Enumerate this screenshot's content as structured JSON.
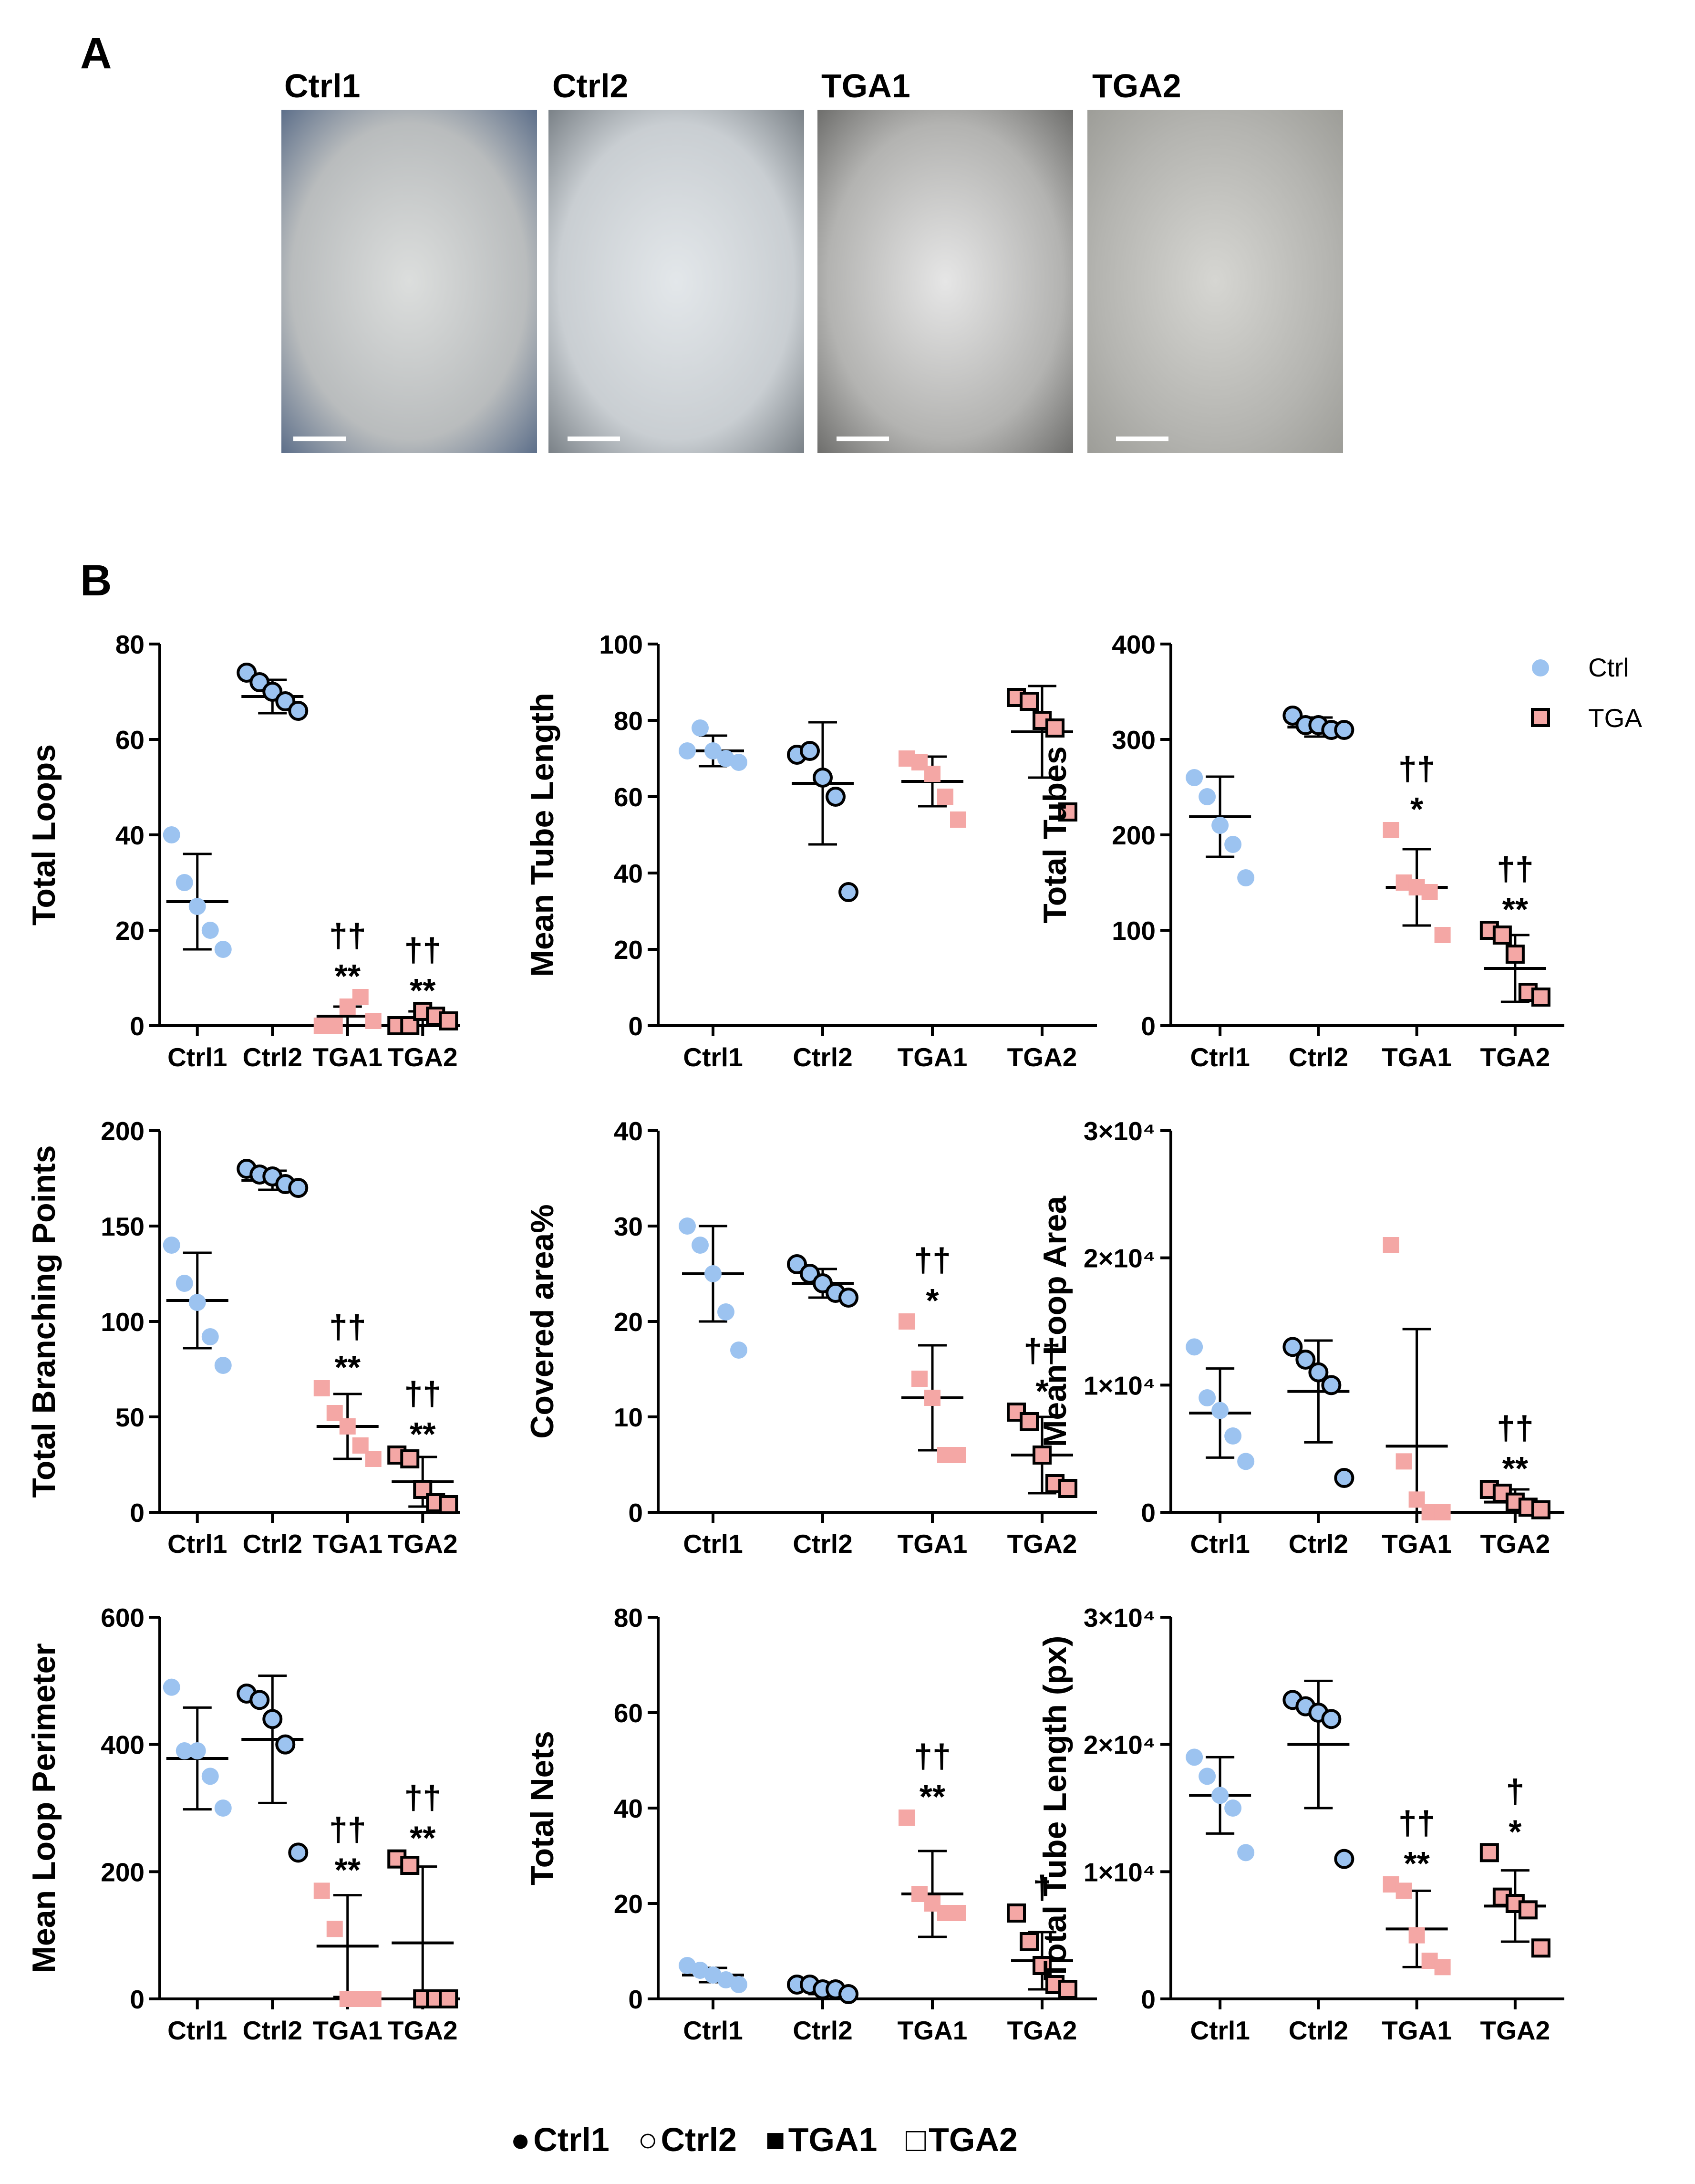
{
  "panel_a": {
    "letter": "A",
    "images": [
      {
        "label": "Ctrl1",
        "bg": "#b9bcbd",
        "center": "#dcdedd",
        "edge": "#5d6f8a"
      },
      {
        "label": "Ctrl2",
        "bg": "#c9ced2",
        "center": "#e3e7ea",
        "edge": "#7a8187"
      },
      {
        "label": "TGA1",
        "bg": "#b3b3b1",
        "center": "#e6e6e6",
        "edge": "#6e6e6c"
      },
      {
        "label": "TGA2",
        "bg": "#b4b4b0",
        "center": "#d6d6d2",
        "edge": "#9d9d98"
      }
    ]
  },
  "panel_b": {
    "letter": "B"
  },
  "legend": {
    "ctrl": {
      "label": "Ctrl",
      "color": "#9cc3f0"
    },
    "tga": {
      "label": "TGA",
      "color": "#f4a7a5"
    }
  },
  "bottom_legend": {
    "ctrl1": {
      "symbol": "●",
      "label": "Ctrl1"
    },
    "ctrl2": {
      "symbol": "○",
      "label": "Ctrl2"
    },
    "tga1": {
      "symbol": "■",
      "label": "TGA1"
    },
    "tga2": {
      "symbol": "□",
      "label": "TGA2"
    }
  },
  "chart_data": [
    {
      "type": "scatter",
      "title": "",
      "ylabel": "Total Loops",
      "ylim": [
        0,
        80
      ],
      "yticks": [
        "0",
        "20",
        "40",
        "60",
        "80"
      ],
      "categories": [
        "Ctrl1",
        "Ctrl2",
        "TGA1",
        "TGA2"
      ],
      "points": [
        [
          40,
          30,
          25,
          20,
          16
        ],
        [
          74,
          72,
          70,
          68,
          66
        ],
        [
          0,
          0,
          4,
          6,
          1
        ],
        [
          0,
          0,
          3,
          2,
          1
        ]
      ],
      "mean": [
        26,
        69,
        2,
        1.5
      ],
      "sd": [
        10,
        3.5,
        2,
        1.5
      ],
      "annotations": [
        null,
        null,
        [
          "††",
          "**"
        ],
        [
          "††",
          "**"
        ]
      ]
    },
    {
      "type": "scatter",
      "title": "",
      "ylabel": "Mean Tube Length",
      "ylim": [
        0,
        100
      ],
      "yticks": [
        "0",
        "20",
        "40",
        "60",
        "80",
        "100"
      ],
      "categories": [
        "Ctrl1",
        "Ctrl2",
        "TGA1",
        "TGA2"
      ],
      "points": [
        [
          72,
          78,
          72,
          70,
          69
        ],
        [
          71,
          72,
          65,
          60,
          35
        ],
        [
          70,
          69,
          66,
          60,
          54
        ],
        [
          86,
          85,
          80,
          78,
          56
        ]
      ],
      "mean": [
        72,
        63.5,
        64,
        77
      ],
      "sd": [
        4,
        16,
        6.5,
        12
      ],
      "annotations": [
        null,
        null,
        null,
        null
      ]
    },
    {
      "type": "scatter",
      "title": "",
      "ylabel": "Total Tubes",
      "ylim": [
        0,
        400
      ],
      "yticks": [
        "0",
        "100",
        "200",
        "300",
        "400"
      ],
      "categories": [
        "Ctrl1",
        "Ctrl2",
        "TGA1",
        "TGA2"
      ],
      "points": [
        [
          260,
          240,
          210,
          190,
          155
        ],
        [
          325,
          315,
          315,
          310,
          310
        ],
        [
          205,
          150,
          145,
          140,
          95
        ],
        [
          100,
          95,
          75,
          35,
          30
        ]
      ],
      "mean": [
        219,
        313,
        145,
        60
      ],
      "sd": [
        42,
        10,
        40,
        35
      ],
      "annotations": [
        null,
        null,
        [
          "††",
          "*"
        ],
        [
          "††",
          "**"
        ]
      ]
    },
    {
      "type": "scatter",
      "title": "",
      "ylabel": "Total Branching Points",
      "ylim": [
        0,
        200
      ],
      "yticks": [
        "0",
        "50",
        "100",
        "150",
        "200"
      ],
      "categories": [
        "Ctrl1",
        "Ctrl2",
        "TGA1",
        "TGA2"
      ],
      "points": [
        [
          140,
          120,
          110,
          92,
          77
        ],
        [
          180,
          177,
          176,
          172,
          170
        ],
        [
          65,
          52,
          45,
          35,
          28
        ],
        [
          30,
          28,
          12,
          5,
          4
        ]
      ],
      "mean": [
        111,
        174,
        45,
        16
      ],
      "sd": [
        25,
        5,
        17,
        13
      ],
      "annotations": [
        null,
        null,
        [
          "††",
          "**"
        ],
        [
          "††",
          "**"
        ]
      ]
    },
    {
      "type": "scatter",
      "title": "",
      "ylabel": "Covered area%",
      "ylim": [
        0,
        40
      ],
      "yticks": [
        "0",
        "10",
        "20",
        "30",
        "40"
      ],
      "categories": [
        "Ctrl1",
        "Ctrl2",
        "TGA1",
        "TGA2"
      ],
      "points": [
        [
          30,
          28,
          25,
          21,
          17
        ],
        [
          26,
          25,
          24,
          23,
          22.5
        ],
        [
          20,
          14,
          12,
          6,
          6
        ],
        [
          10.5,
          9.5,
          6,
          3,
          2.5
        ]
      ],
      "mean": [
        25,
        24,
        12,
        6
      ],
      "sd": [
        5,
        1.5,
        5.5,
        4
      ],
      "annotations": [
        null,
        null,
        [
          "††",
          "*"
        ],
        [
          "††",
          "*"
        ]
      ]
    },
    {
      "type": "scatter",
      "title": "",
      "ylabel": "Mean Loop Area",
      "ylim": [
        0,
        30000
      ],
      "yticks": [
        "0",
        "1×10⁴",
        "2×10⁴",
        "3×10⁴"
      ],
      "categories": [
        "Ctrl1",
        "Ctrl2",
        "TGA1",
        "TGA2"
      ],
      "points": [
        [
          13000,
          9000,
          8000,
          6000,
          4000
        ],
        [
          13000,
          12000,
          11000,
          10000,
          2700
        ],
        [
          21000,
          4000,
          1000,
          0,
          0
        ],
        [
          1800,
          1500,
          800,
          400,
          200
        ]
      ],
      "mean": [
        7800,
        9500,
        5200,
        800
      ],
      "sd": [
        3500,
        4000,
        9200,
        1000
      ],
      "annotations": [
        null,
        null,
        null,
        [
          "††",
          "**"
        ]
      ]
    },
    {
      "type": "scatter",
      "title": "",
      "ylabel": "Mean Loop Perimeter",
      "ylim": [
        0,
        600
      ],
      "yticks": [
        "0",
        "200",
        "400",
        "600"
      ],
      "categories": [
        "Ctrl1",
        "Ctrl2",
        "TGA1",
        "TGA2"
      ],
      "points": [
        [
          490,
          390,
          390,
          350,
          300
        ],
        [
          480,
          470,
          440,
          400,
          230
        ],
        [
          170,
          110,
          0,
          0,
          0
        ],
        [
          220,
          210,
          0,
          0,
          0
        ]
      ],
      "mean": [
        378,
        408,
        83,
        88
      ],
      "sd": [
        80,
        100,
        80,
        120
      ],
      "annotations": [
        null,
        null,
        [
          "††",
          "**"
        ],
        [
          "††",
          "**"
        ]
      ]
    },
    {
      "type": "scatter",
      "title": "",
      "ylabel": "Total Nets",
      "ylim": [
        0,
        80
      ],
      "yticks": [
        "0",
        "20",
        "40",
        "60",
        "80"
      ],
      "categories": [
        "Ctrl1",
        "Ctrl2",
        "TGA1",
        "TGA2"
      ],
      "points": [
        [
          7,
          6,
          5,
          4,
          3
        ],
        [
          3,
          3,
          2,
          2,
          1
        ],
        [
          38,
          22,
          20,
          18,
          18
        ],
        [
          18,
          12,
          7,
          3,
          2
        ]
      ],
      "mean": [
        5,
        2,
        22,
        8
      ],
      "sd": [
        1.5,
        1,
        9,
        6
      ],
      "annotations": [
        null,
        null,
        [
          "††",
          "**"
        ],
        [
          "†",
          null
        ]
      ]
    },
    {
      "type": "scatter",
      "title": "",
      "ylabel": "Total Tube Length (px)",
      "ylim": [
        0,
        30000
      ],
      "yticks": [
        "0",
        "1×10⁴",
        "2×10⁴",
        "3×10⁴"
      ],
      "categories": [
        "Ctrl1",
        "Ctrl2",
        "TGA1",
        "TGA2"
      ],
      "points": [
        [
          19000,
          17500,
          16000,
          15000,
          11500
        ],
        [
          23500,
          23000,
          22500,
          22000,
          11000
        ],
        [
          9000,
          8500,
          5000,
          3000,
          2500
        ],
        [
          11500,
          8000,
          7500,
          7000,
          4000
        ]
      ],
      "mean": [
        16000,
        20000,
        5500,
        7300
      ],
      "sd": [
        3000,
        5000,
        3000,
        2800
      ],
      "annotations": [
        null,
        null,
        [
          "††",
          "**"
        ],
        [
          "†",
          "*"
        ]
      ]
    }
  ]
}
